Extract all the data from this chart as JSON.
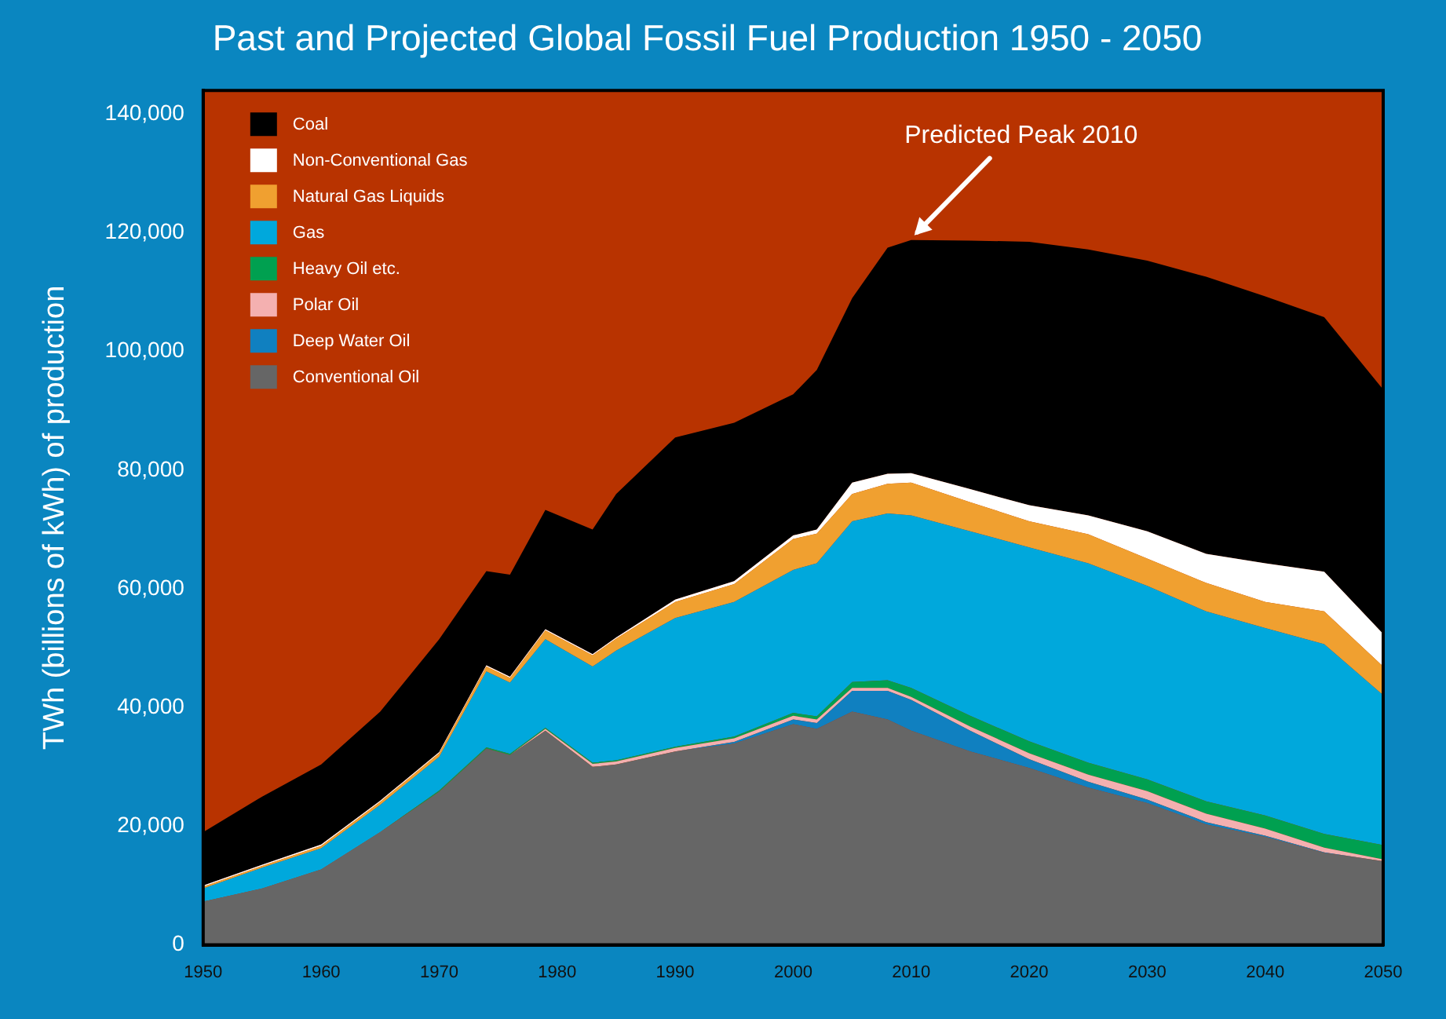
{
  "chart_data": {
    "type": "area",
    "title": "Past and Projected Global Fossil Fuel Production 1950 - 2050",
    "ylabel": "TWh (billions of kWh) of production",
    "stacked": true,
    "legend": "top left",
    "x": [
      1950,
      1955,
      1960,
      1965,
      1970,
      1974,
      1976,
      1979,
      1983,
      1985,
      1990,
      1995,
      2000,
      2002,
      2005,
      2008,
      2010,
      2015,
      2020,
      2025,
      2030,
      2035,
      2040,
      2045,
      2050
    ],
    "xlim": [
      1950,
      2050
    ],
    "xticks": [
      1950,
      1960,
      1970,
      1980,
      1990,
      2000,
      2010,
      2020,
      2030,
      2040,
      2050
    ],
    "ylim": [
      0,
      144000
    ],
    "yticks": [
      {
        "value": 0,
        "label": "0"
      },
      {
        "value": 20000,
        "label": "20,000"
      },
      {
        "value": 40000,
        "label": "40,000"
      },
      {
        "value": 60000,
        "label": "60,000"
      },
      {
        "value": 80000,
        "label": "80,000"
      },
      {
        "value": 100000,
        "label": "100,000"
      },
      {
        "value": 120000,
        "label": "120,000"
      },
      {
        "value": 140000,
        "label": "140,000"
      }
    ],
    "series": [
      {
        "name": "Conventional Oil",
        "color": "#666666",
        "values": [
          7300,
          9500,
          12700,
          19000,
          25800,
          33100,
          32000,
          36100,
          30000,
          30400,
          32600,
          33900,
          37200,
          36400,
          39300,
          38000,
          36100,
          32600,
          29800,
          26500,
          23900,
          20300,
          18200,
          15500,
          14100
        ]
      },
      {
        "name": "Deep Water Oil",
        "color": "#1080c0",
        "values": [
          0,
          0,
          0,
          0,
          0,
          0,
          0,
          0,
          0,
          0,
          0,
          300,
          800,
          1000,
          3500,
          4800,
          5200,
          3500,
          1500,
          1000,
          600,
          400,
          200,
          100,
          0
        ]
      },
      {
        "name": "Polar Oil",
        "color": "#f4b0b0",
        "values": [
          0,
          0,
          0,
          0,
          0,
          0,
          0,
          300,
          500,
          500,
          600,
          600,
          600,
          600,
          500,
          500,
          500,
          700,
          1000,
          1200,
          1400,
          1400,
          1200,
          800,
          300
        ]
      },
      {
        "name": "Heavy Oil etc.",
        "color": "#00a050",
        "values": [
          0,
          0,
          0,
          0,
          200,
          200,
          200,
          200,
          200,
          200,
          200,
          300,
          500,
          500,
          1000,
          1300,
          1500,
          1800,
          2000,
          2000,
          2000,
          2100,
          2200,
          2300,
          2400
        ]
      },
      {
        "name": "Gas",
        "color": "#00a8dc",
        "values": [
          2200,
          3500,
          3600,
          4600,
          5700,
          12800,
          12000,
          14900,
          16200,
          18500,
          21700,
          22700,
          24100,
          25800,
          27100,
          28100,
          29100,
          31100,
          32700,
          33600,
          32600,
          32000,
          31600,
          32000,
          25300
        ]
      },
      {
        "name": "Natural Gas Liquids",
        "color": "#f0a030",
        "values": [
          300,
          300,
          400,
          500,
          600,
          800,
          800,
          1500,
          1900,
          2000,
          2700,
          3000,
          5200,
          5000,
          4600,
          5000,
          5500,
          4900,
          4400,
          4900,
          4600,
          4800,
          4400,
          5500,
          4800
        ]
      },
      {
        "name": "Non-Conventional Gas",
        "color": "#ffffff",
        "values": [
          200,
          200,
          200,
          200,
          200,
          200,
          200,
          200,
          200,
          200,
          400,
          500,
          600,
          700,
          1900,
          1700,
          1600,
          2200,
          2700,
          3200,
          4600,
          4900,
          6500,
          6700,
          5500
        ]
      },
      {
        "name": "Coal",
        "color": "#000000",
        "values": [
          9000,
          11500,
          13500,
          15000,
          19000,
          15900,
          17200,
          20100,
          21000,
          24200,
          27300,
          26700,
          23800,
          26900,
          31100,
          38100,
          39300,
          41900,
          44400,
          44800,
          45600,
          46700,
          45000,
          42900,
          41200
        ]
      }
    ],
    "annotations": [
      {
        "text": "Predicted Peak 2010",
        "x": 2010,
        "y": 118800
      }
    ]
  }
}
